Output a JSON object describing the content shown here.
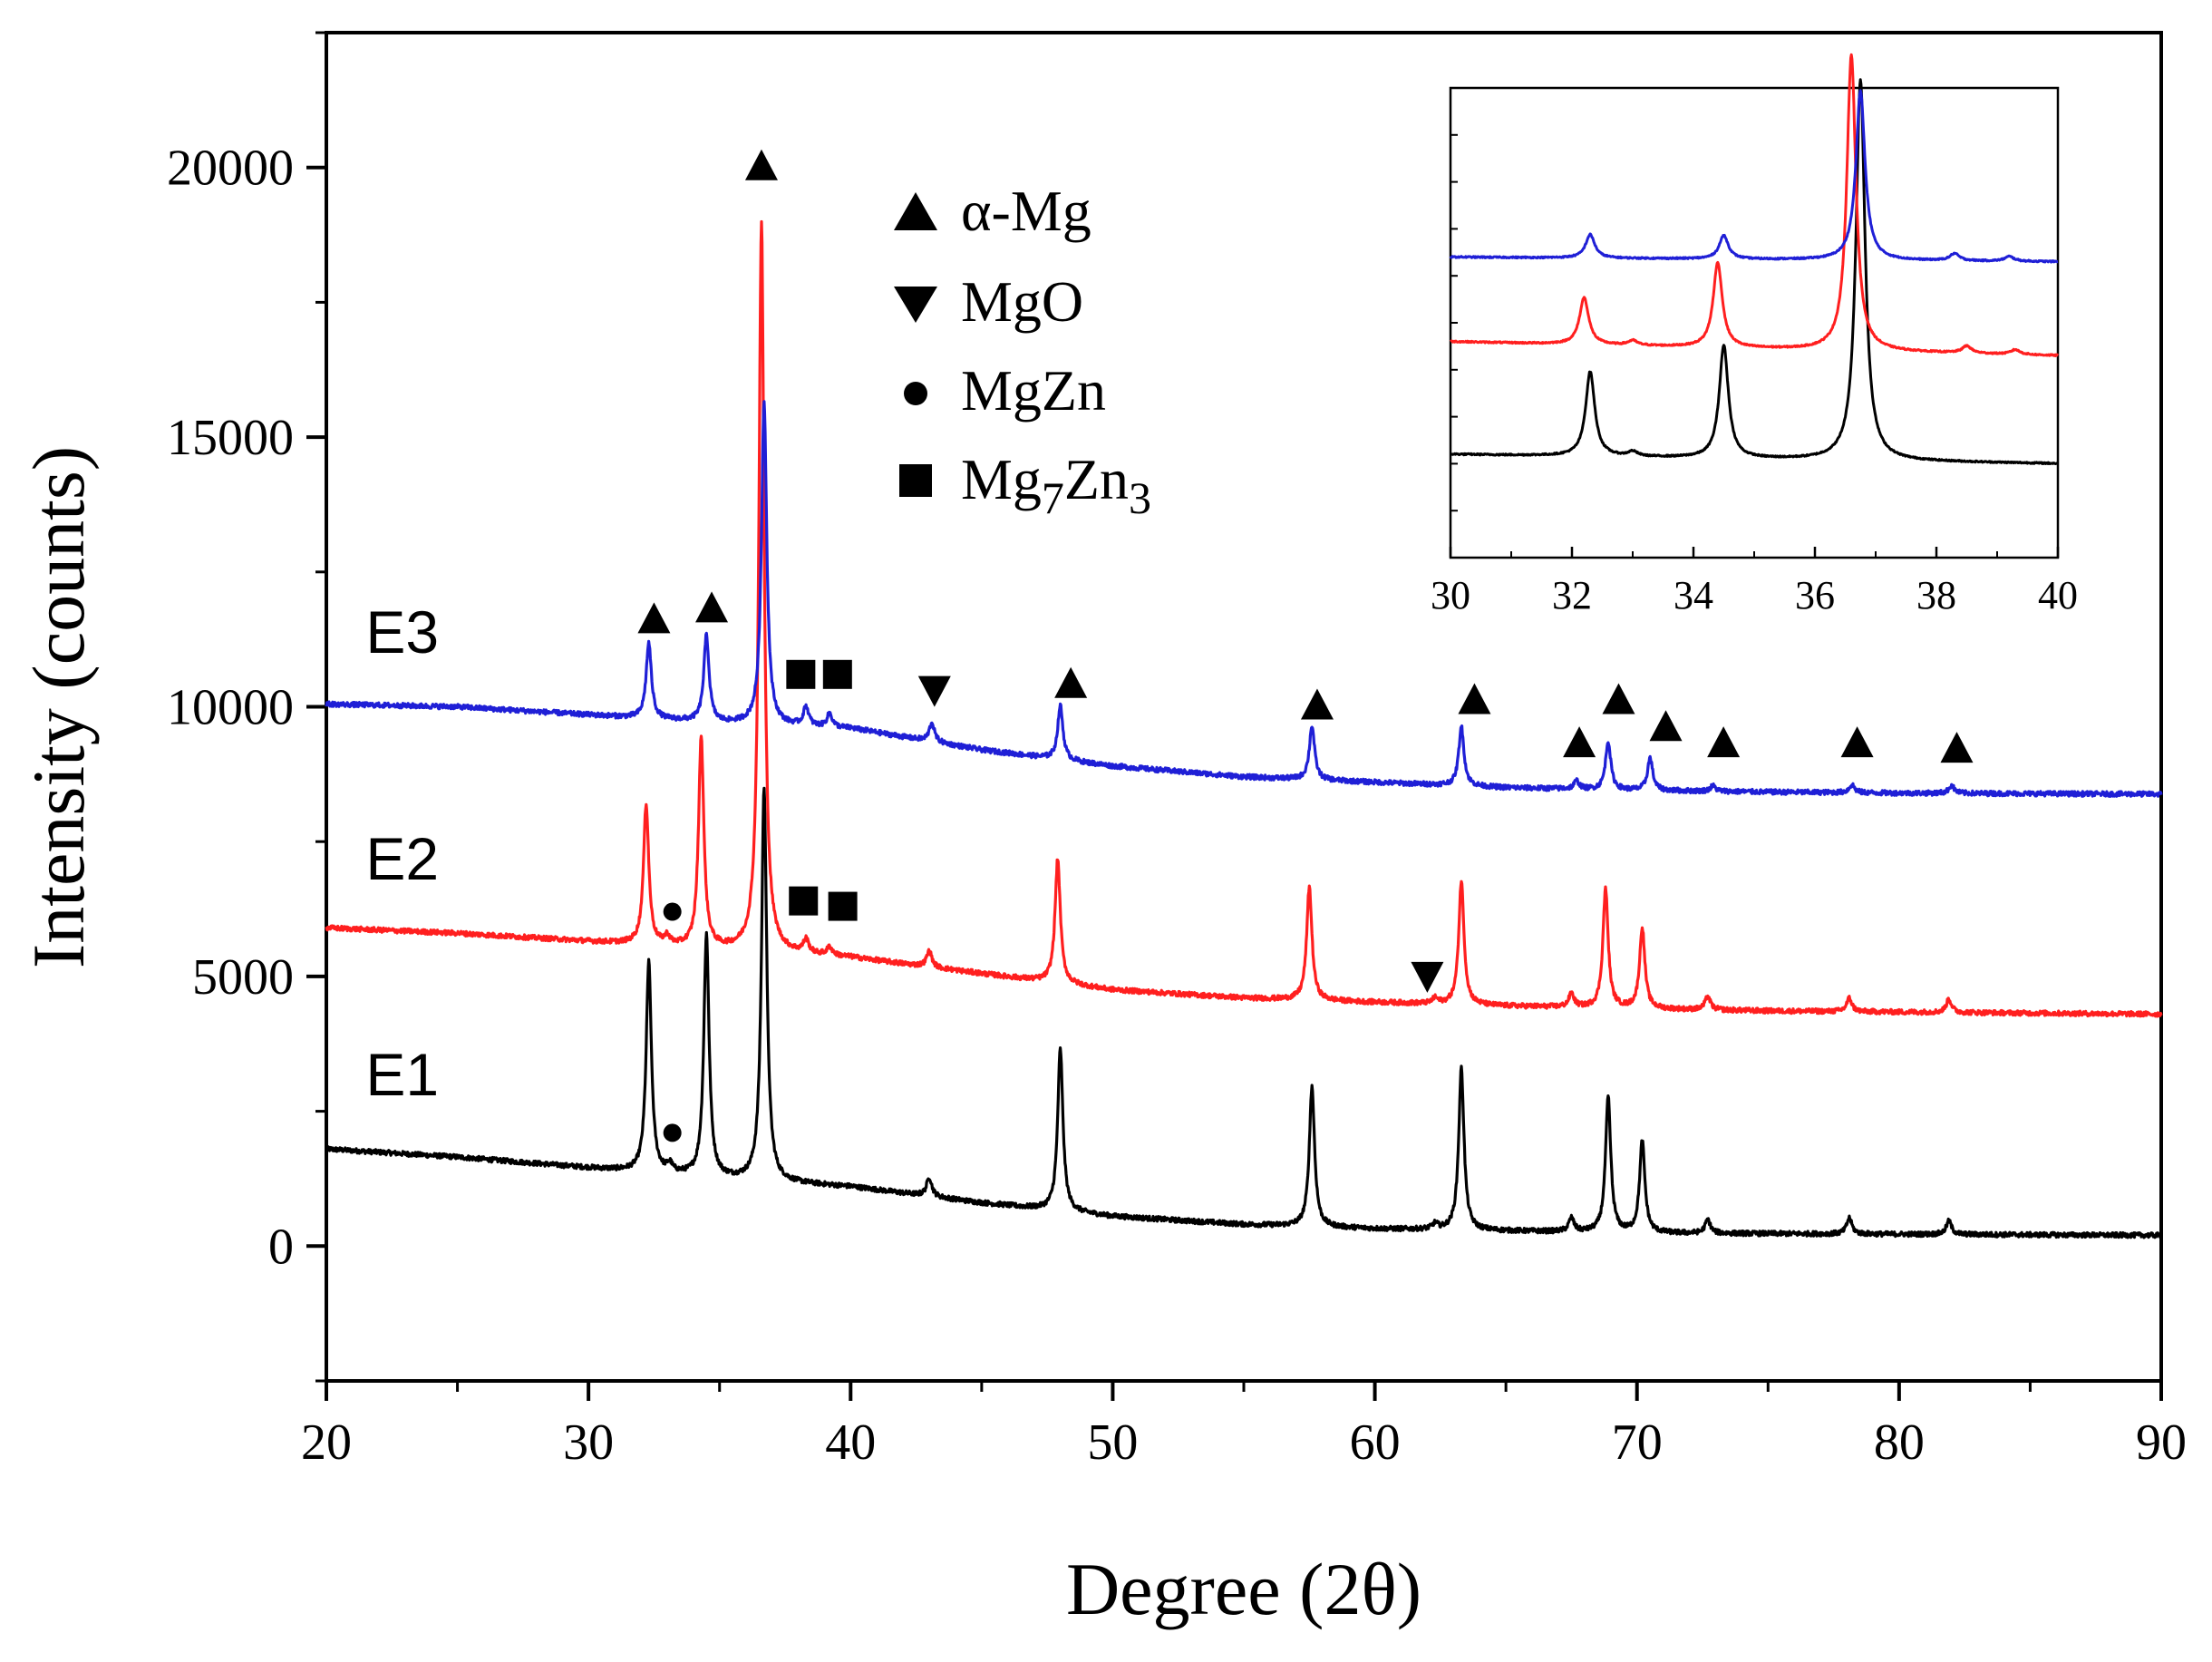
{
  "chart_data": {
    "type": "line",
    "title": "",
    "xlabel": "Degree (2θ)",
    "ylabel": "Intensity (counts)",
    "xlim": [
      20,
      90
    ],
    "ylim": [
      -2500,
      22500
    ],
    "x_ticks": [
      "20",
      "30",
      "40",
      "50",
      "60",
      "70",
      "80",
      "90"
    ],
    "y_ticks": [
      "0",
      "5000",
      "10000",
      "15000",
      "20000"
    ],
    "x_tick_values": [
      20,
      30,
      40,
      50,
      60,
      70,
      80,
      90
    ],
    "y_tick_values": [
      0,
      5000,
      10000,
      15000,
      20000
    ],
    "series": [
      {
        "name": "E1",
        "color": "#000000",
        "baseline": [
          [
            20,
            1800
          ],
          [
            25,
            1650
          ],
          [
            30,
            1450
          ],
          [
            35,
            1250
          ],
          [
            40,
            1100
          ],
          [
            45,
            800
          ],
          [
            50,
            550
          ],
          [
            55,
            400
          ],
          [
            60,
            320
          ],
          [
            65,
            280
          ],
          [
            70,
            240
          ],
          [
            75,
            230
          ],
          [
            80,
            220
          ],
          [
            90,
            200
          ]
        ],
        "peaks": [
          [
            32.3,
            3900
          ],
          [
            33.1,
            150
          ],
          [
            34.5,
            4500
          ],
          [
            36.7,
            7300
          ],
          [
            43.0,
            350
          ],
          [
            48.0,
            3000
          ],
          [
            57.6,
            2600
          ],
          [
            62.3,
            100
          ],
          [
            63.3,
            3000
          ],
          [
            67.5,
            250
          ],
          [
            68.9,
            2500
          ],
          [
            70.2,
            1700
          ],
          [
            72.7,
            250
          ],
          [
            78.1,
            300
          ],
          [
            81.9,
            250
          ]
        ]
      },
      {
        "name": "E2",
        "color": "#ff1f1f",
        "baseline": [
          [
            20,
            5900
          ],
          [
            25,
            5800
          ],
          [
            30,
            5650
          ],
          [
            35,
            5500
          ],
          [
            40,
            5350
          ],
          [
            45,
            5050
          ],
          [
            50,
            4750
          ],
          [
            55,
            4600
          ],
          [
            60,
            4520
          ],
          [
            65,
            4450
          ],
          [
            70,
            4400
          ],
          [
            75,
            4360
          ],
          [
            80,
            4340
          ],
          [
            90,
            4300
          ]
        ],
        "peaks": [
          [
            32.2,
            2600
          ],
          [
            33.0,
            150
          ],
          [
            34.3,
            3900
          ],
          [
            36.6,
            13500
          ],
          [
            38.3,
            250
          ],
          [
            39.2,
            150
          ],
          [
            43.0,
            300
          ],
          [
            47.9,
            2300
          ],
          [
            57.5,
            2100
          ],
          [
            62.3,
            100
          ],
          [
            63.3,
            2300
          ],
          [
            67.5,
            250
          ],
          [
            68.8,
            2200
          ],
          [
            70.2,
            1500
          ],
          [
            72.7,
            250
          ],
          [
            78.1,
            250
          ],
          [
            81.9,
            250
          ]
        ]
      },
      {
        "name": "E3",
        "color": "#1f1fd6",
        "baseline": [
          [
            20,
            10050
          ],
          [
            25,
            10000
          ],
          [
            30,
            9850
          ],
          [
            35,
            9700
          ],
          [
            40,
            9600
          ],
          [
            45,
            9200
          ],
          [
            50,
            8900
          ],
          [
            55,
            8700
          ],
          [
            60,
            8600
          ],
          [
            65,
            8500
          ],
          [
            70,
            8450
          ],
          [
            75,
            8420
          ],
          [
            80,
            8400
          ],
          [
            90,
            8380
          ]
        ],
        "peaks": [
          [
            32.3,
            1400
          ],
          [
            34.5,
            1600
          ],
          [
            36.7,
            6000
          ],
          [
            38.3,
            350
          ],
          [
            39.2,
            250
          ],
          [
            43.1,
            350
          ],
          [
            48.0,
            1000
          ],
          [
            57.6,
            1000
          ],
          [
            63.3,
            1100
          ],
          [
            67.7,
            150
          ],
          [
            68.9,
            900
          ],
          [
            70.5,
            600
          ],
          [
            72.9,
            100
          ],
          [
            78.2,
            150
          ],
          [
            82.0,
            150
          ]
        ]
      }
    ],
    "curve_labels": [
      {
        "text": "E3",
        "x": 21.5,
        "y": 11000
      },
      {
        "text": "E2",
        "x": 21.5,
        "y": 6800
      },
      {
        "text": "E1",
        "x": 21.5,
        "y": 2800
      }
    ],
    "legend": {
      "placement": "top-center",
      "entries": [
        {
          "marker": "triangle-up",
          "label": "α-Mg"
        },
        {
          "marker": "triangle-down",
          "label": "MgO"
        },
        {
          "marker": "circle",
          "label": "MgZn"
        },
        {
          "marker": "square",
          "label": "Mg",
          "sub1": "7",
          "mid": "Zn",
          "sub2": "3"
        }
      ]
    },
    "phase_markers": [
      {
        "marker": "triangle-up",
        "x": 36.6,
        "y": 20000
      },
      {
        "marker": "triangle-up",
        "x": 32.5,
        "y": 11600
      },
      {
        "marker": "triangle-up",
        "x": 34.7,
        "y": 11800
      },
      {
        "marker": "square",
        "x": 38.1,
        "y": 10600
      },
      {
        "marker": "square",
        "x": 39.5,
        "y": 10600
      },
      {
        "marker": "triangle-down",
        "x": 43.2,
        "y": 10300
      },
      {
        "marker": "triangle-up",
        "x": 48.4,
        "y": 10400
      },
      {
        "marker": "triangle-up",
        "x": 57.8,
        "y": 10000
      },
      {
        "marker": "triangle-up",
        "x": 63.8,
        "y": 10100
      },
      {
        "marker": "triangle-up",
        "x": 67.8,
        "y": 9300
      },
      {
        "marker": "triangle-up",
        "x": 69.3,
        "y": 10100
      },
      {
        "marker": "triangle-up",
        "x": 71.1,
        "y": 9600
      },
      {
        "marker": "triangle-up",
        "x": 73.3,
        "y": 9300
      },
      {
        "marker": "triangle-up",
        "x": 78.4,
        "y": 9300
      },
      {
        "marker": "triangle-up",
        "x": 82.2,
        "y": 9200
      },
      {
        "marker": "circle",
        "x": 33.2,
        "y": 6200
      },
      {
        "marker": "square",
        "x": 38.2,
        "y": 6400
      },
      {
        "marker": "square",
        "x": 39.7,
        "y": 6300
      },
      {
        "marker": "triangle-down",
        "x": 62.0,
        "y": 5000
      },
      {
        "marker": "circle",
        "x": 33.2,
        "y": 2100
      }
    ],
    "inset": {
      "type": "line",
      "xlim": [
        30,
        40
      ],
      "ylim": [
        0,
        10
      ],
      "x_ticks": [
        "30",
        "32",
        "34",
        "36",
        "38",
        "40"
      ],
      "x_tick_values": [
        30,
        32,
        34,
        36,
        38,
        40
      ],
      "y_ticks_shown": false,
      "series": [
        {
          "name": "E1",
          "color": "#000000",
          "baseline": [
            [
              30,
              2.2
            ],
            [
              40,
              2.0
            ]
          ],
          "peaks": [
            [
              32.3,
              1.8
            ],
            [
              33.0,
              0.1
            ],
            [
              34.5,
              2.4
            ],
            [
              36.75,
              8.1
            ]
          ]
        },
        {
          "name": "E2",
          "color": "#ff1f1f",
          "baseline": [
            [
              30,
              4.6
            ],
            [
              40,
              4.3
            ]
          ],
          "peaks": [
            [
              32.2,
              1.0
            ],
            [
              33.0,
              0.1
            ],
            [
              34.4,
              1.8
            ],
            [
              36.6,
              6.3
            ],
            [
              38.5,
              0.15
            ],
            [
              39.3,
              0.1
            ]
          ]
        },
        {
          "name": "E3",
          "color": "#1f1fd6",
          "baseline": [
            [
              30,
              6.4
            ],
            [
              40,
              6.3
            ]
          ],
          "peaks": [
            [
              32.3,
              0.5
            ],
            [
              34.5,
              0.5
            ],
            [
              36.75,
              3.6
            ],
            [
              38.3,
              0.15
            ],
            [
              39.2,
              0.1
            ]
          ]
        }
      ]
    }
  }
}
